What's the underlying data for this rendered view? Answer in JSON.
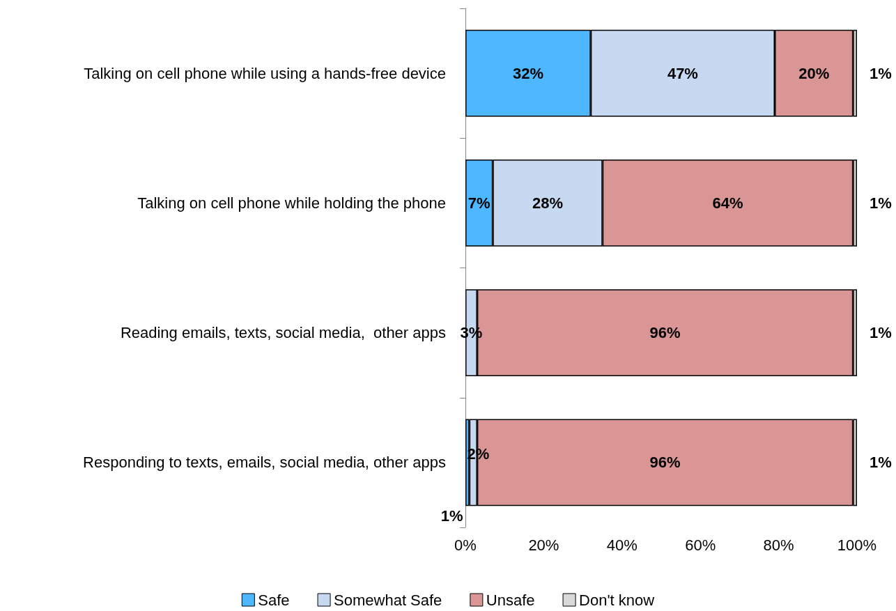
{
  "chart_data": {
    "type": "bar",
    "orientation": "horizontal",
    "stacked": true,
    "categories": [
      "Talking on cell phone while using a hands-free device",
      "Talking on cell phone while holding the phone",
      "Reading emails, texts, social media,  other apps",
      "Responding to texts, emails, social media, other apps"
    ],
    "series": [
      {
        "name": "Safe",
        "color": "#4db8ff",
        "values": [
          32,
          7,
          null,
          1
        ],
        "value_labels": [
          "32%",
          "7%",
          null,
          "1%"
        ]
      },
      {
        "name": "Somewhat Safe",
        "color": "#c6d9f0",
        "values": [
          47,
          28,
          3,
          2
        ],
        "value_labels": [
          "47%",
          "28%",
          "3%",
          "2%"
        ]
      },
      {
        "name": "Unsafe",
        "color": "#d99694",
        "values": [
          20,
          64,
          96,
          96
        ],
        "value_labels": [
          "20%",
          "64%",
          "96%",
          "96%"
        ]
      },
      {
        "name": "Don't know",
        "color": "#d9d9d9",
        "values": [
          1,
          1,
          1,
          1
        ],
        "value_labels": [
          "1%",
          "1%",
          "1%",
          "1%"
        ]
      }
    ],
    "xlim": [
      0,
      100
    ],
    "xticks": [
      {
        "value": 0,
        "label": "0%"
      },
      {
        "value": 20,
        "label": "20%"
      },
      {
        "value": 40,
        "label": "40%"
      },
      {
        "value": 60,
        "label": "60%"
      },
      {
        "value": 80,
        "label": "80%"
      },
      {
        "value": 100,
        "label": "100%"
      }
    ],
    "grid": false,
    "legend": "bottom"
  }
}
